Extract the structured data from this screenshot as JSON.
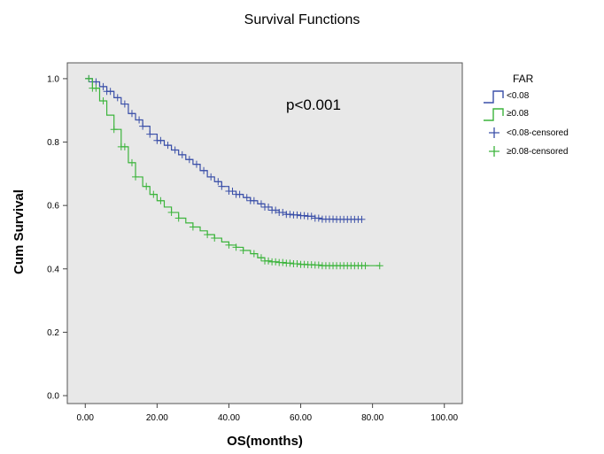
{
  "chart_data": {
    "type": "line",
    "title": "Survival Functions",
    "xlabel": "OS(months)",
    "ylabel": "Cum Survival",
    "xlim": [
      -5,
      105
    ],
    "ylim": [
      -0.025,
      1.05
    ],
    "xticks": [
      0,
      20,
      40,
      60,
      80,
      100
    ],
    "xtick_labels": [
      "0.00",
      "20.00",
      "40.00",
      "60.00",
      "80.00",
      "100.00"
    ],
    "yticks": [
      0,
      0.2,
      0.4,
      0.6,
      0.8,
      1.0
    ],
    "ytick_labels": [
      "0.0",
      "0.2",
      "0.4",
      "0.6",
      "0.8",
      "1.0"
    ],
    "annotation": "p<0.001",
    "background": "#e8e8e8",
    "grid": false,
    "legend": {
      "title": "FAR",
      "position": "right",
      "entries": [
        "<0.08",
        "≥0.08",
        "<0.08-censored",
        "≥0.08-censored"
      ]
    },
    "series": [
      {
        "name": "<0.08",
        "color": "#3a4fa8",
        "points": [
          [
            0,
            1.0
          ],
          [
            2,
            0.99
          ],
          [
            4,
            0.975
          ],
          [
            6,
            0.96
          ],
          [
            8,
            0.94
          ],
          [
            10,
            0.92
          ],
          [
            12,
            0.89
          ],
          [
            14,
            0.87
          ],
          [
            16,
            0.85
          ],
          [
            18,
            0.825
          ],
          [
            20,
            0.805
          ],
          [
            22,
            0.79
          ],
          [
            24,
            0.775
          ],
          [
            26,
            0.76
          ],
          [
            28,
            0.745
          ],
          [
            30,
            0.73
          ],
          [
            32,
            0.71
          ],
          [
            34,
            0.69
          ],
          [
            36,
            0.675
          ],
          [
            38,
            0.66
          ],
          [
            40,
            0.645
          ],
          [
            42,
            0.635
          ],
          [
            44,
            0.625
          ],
          [
            46,
            0.615
          ],
          [
            48,
            0.605
          ],
          [
            50,
            0.595
          ],
          [
            52,
            0.585
          ],
          [
            54,
            0.578
          ],
          [
            56,
            0.572
          ],
          [
            58,
            0.57
          ],
          [
            60,
            0.568
          ],
          [
            62,
            0.566
          ],
          [
            64,
            0.56
          ],
          [
            66,
            0.557
          ],
          [
            70,
            0.556
          ],
          [
            74,
            0.556
          ],
          [
            77,
            0.556
          ]
        ],
        "censored_x": [
          1,
          2,
          3,
          5,
          6,
          7,
          9,
          11,
          13,
          15,
          16,
          18,
          20,
          21,
          23,
          25,
          27,
          29,
          31,
          33,
          35,
          37,
          38,
          40,
          41,
          42,
          43,
          45,
          46,
          47,
          49,
          50,
          51,
          52,
          53,
          54,
          55,
          56,
          57,
          58,
          59,
          60,
          61,
          62,
          63,
          64,
          65,
          66,
          67,
          68,
          69,
          70,
          71,
          72,
          73,
          74,
          75,
          76,
          77
        ]
      },
      {
        "name": "≥0.08",
        "color": "#3cb43c",
        "points": [
          [
            0,
            1.0
          ],
          [
            2,
            0.97
          ],
          [
            4,
            0.93
          ],
          [
            6,
            0.885
          ],
          [
            8,
            0.84
          ],
          [
            10,
            0.785
          ],
          [
            12,
            0.735
          ],
          [
            14,
            0.69
          ],
          [
            16,
            0.66
          ],
          [
            18,
            0.635
          ],
          [
            20,
            0.615
          ],
          [
            22,
            0.595
          ],
          [
            24,
            0.578
          ],
          [
            26,
            0.56
          ],
          [
            28,
            0.545
          ],
          [
            30,
            0.532
          ],
          [
            32,
            0.52
          ],
          [
            34,
            0.508
          ],
          [
            36,
            0.497
          ],
          [
            38,
            0.485
          ],
          [
            40,
            0.475
          ],
          [
            42,
            0.468
          ],
          [
            44,
            0.458
          ],
          [
            46,
            0.448
          ],
          [
            48,
            0.435
          ],
          [
            50,
            0.425
          ],
          [
            52,
            0.422
          ],
          [
            54,
            0.42
          ],
          [
            56,
            0.418
          ],
          [
            58,
            0.416
          ],
          [
            60,
            0.414
          ],
          [
            62,
            0.413
          ],
          [
            64,
            0.412
          ],
          [
            66,
            0.41
          ],
          [
            70,
            0.41
          ],
          [
            76,
            0.41
          ],
          [
            82,
            0.41
          ]
        ],
        "censored_x": [
          1,
          2,
          3,
          5,
          8,
          10,
          11,
          13,
          14,
          17,
          19,
          21,
          24,
          26,
          30,
          34,
          36,
          40,
          42,
          44,
          47,
          49,
          50,
          51,
          52,
          53,
          54,
          55,
          56,
          57,
          58,
          59,
          60,
          61,
          62,
          63,
          64,
          65,
          66,
          67,
          68,
          69,
          70,
          71,
          72,
          73,
          74,
          75,
          76,
          77,
          78,
          82
        ]
      }
    ]
  }
}
